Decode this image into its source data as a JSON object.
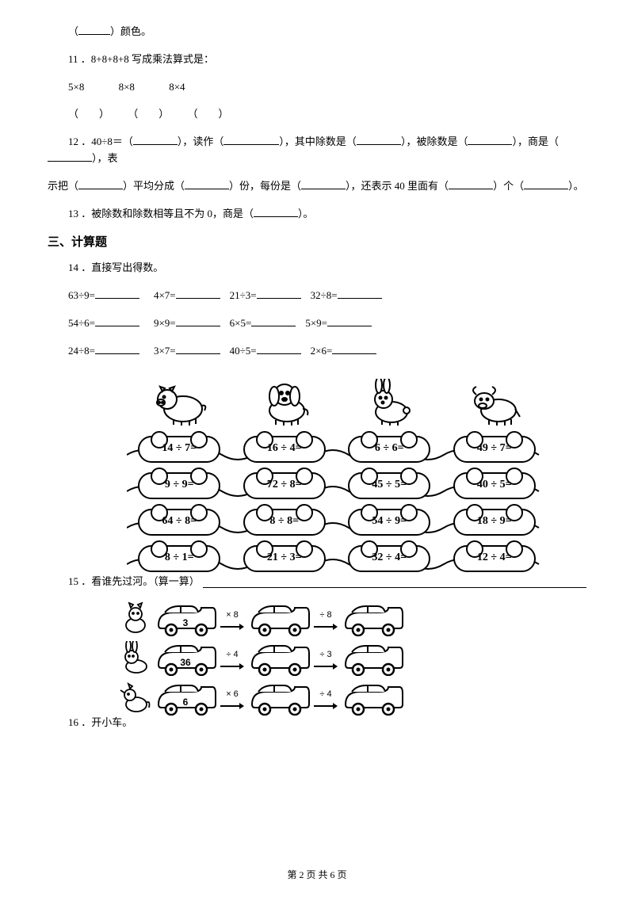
{
  "q_color": {
    "prefix": "（",
    "blank": "____",
    "suffix": "）颜色。"
  },
  "q11": {
    "num": "11 ．",
    "text": "8+8+8+8 写成乘法算式是：",
    "options": [
      "5×8",
      "8×8",
      "8×4"
    ],
    "parens": [
      "（　　）",
      "（　　）",
      "（　　）"
    ]
  },
  "q12": {
    "num": "12 ．",
    "parts": [
      "40÷8＝（",
      "______",
      "），读作（",
      "________",
      "），其中除数是（",
      "_____",
      "），被除数是（",
      "_____",
      "），商是（",
      "_____",
      "），表"
    ],
    "line2": [
      "示把（",
      "_____",
      "）平均分成（",
      "_____",
      "）份，每份是（",
      "_____",
      "），还表示 40 里面有（",
      "_____",
      "）个（",
      "_____",
      "）。"
    ]
  },
  "q13": {
    "num": "13 ．",
    "text_a": "被除数和除数相等且不为 0，商是（",
    "text_b": "______",
    "text_c": "）。"
  },
  "section3": "三、计算题",
  "q14": {
    "num": "14 ．",
    "label": "直接写出得数。",
    "rows": [
      [
        "63÷9=",
        "4×7=",
        "21÷3=",
        "32÷8="
      ],
      [
        "54÷6=",
        "9×9=",
        "6×5=",
        "5×9="
      ],
      [
        "24÷8=",
        "3×7=",
        "40÷5=",
        "2×6="
      ]
    ]
  },
  "fig1": {
    "rows": [
      [
        "14 ÷ 7=",
        "16 ÷ 4=",
        "6 ÷ 6=",
        "49 ÷ 7="
      ],
      [
        "9 ÷ 9=",
        "72 ÷ 8=",
        "45 ÷ 5=",
        "40 ÷ 5="
      ],
      [
        "64 ÷ 8=",
        "8 ÷ 8=",
        "54 ÷ 9=",
        "18 ÷ 9="
      ],
      [
        "8 ÷ 1=",
        "21 ÷ 3=",
        "32 ÷ 4=",
        "12 ÷ 4="
      ]
    ]
  },
  "q15": {
    "num": "15 ．",
    "label": "看谁先过河。（算一算）"
  },
  "fig2": {
    "rows": [
      {
        "start": "3",
        "ops": [
          "× 8",
          "÷ 8"
        ]
      },
      {
        "start": "36",
        "ops": [
          "÷ 4",
          "÷ 3"
        ]
      },
      {
        "start": "6",
        "ops": [
          "× 6",
          "÷ 4"
        ]
      }
    ]
  },
  "q16": {
    "num": "16 ．",
    "label": "开小车。"
  },
  "footer": {
    "text": "第 2 页 共 6 页"
  },
  "colors": {
    "text": "#000000",
    "bg": "#ffffff"
  }
}
